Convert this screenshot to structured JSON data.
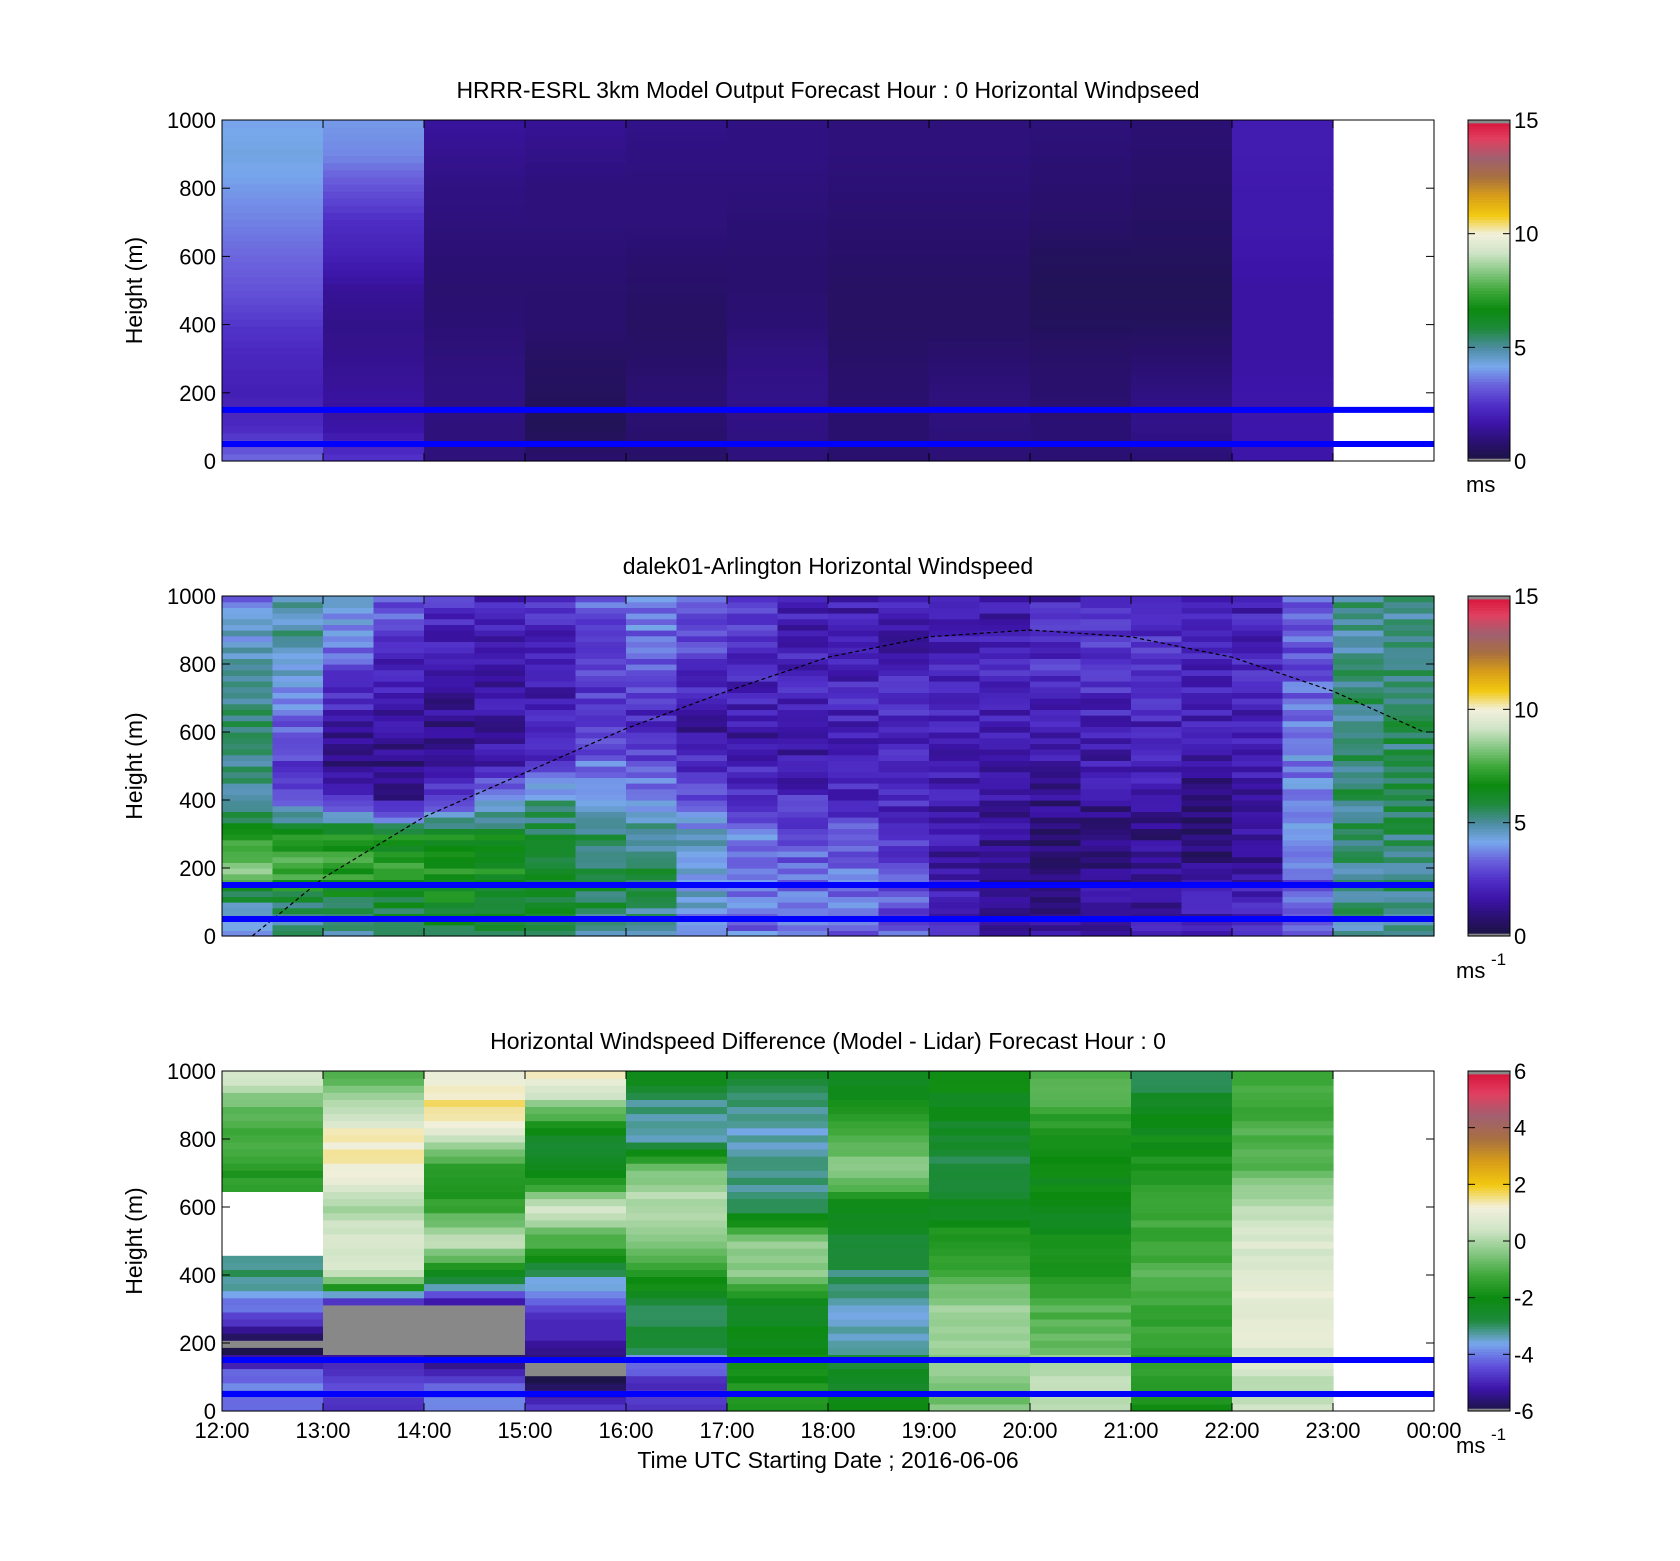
{
  "figure": {
    "background": "#ffffff",
    "wind_colormap": [
      "#1a1440",
      "#2a1070",
      "#3c14a8",
      "#5030c8",
      "#6a60dc",
      "#78a8ec",
      "#4c8ca0",
      "#1e8a3c",
      "#0c8a10",
      "#3ea83a",
      "#86c884",
      "#cfe4c6",
      "#f2f0dc",
      "#f2c810",
      "#d89e18",
      "#a87040",
      "#a06070",
      "#e04060",
      "#d81038"
    ],
    "diff_colormap": [
      "#1a1440",
      "#3c14a8",
      "#6050dc",
      "#78a8ec",
      "#1e8a3c",
      "#0c8a10",
      "#3ea83a",
      "#86c884",
      "#cfe4c6",
      "#f2f0dc",
      "#f2c810",
      "#d89e18",
      "#a87040",
      "#a06070",
      "#e04060",
      "#d81038"
    ],
    "level_line_color": "#0000ff",
    "overflow_color": "#888888"
  },
  "chart_data": [
    {
      "type": "heatmap",
      "title": "HRRR-ESRL 3km Model Output   Forecast Hour : 0 Horizontal Windpseed",
      "ylabel": "Height (m)",
      "xlabel": "",
      "xlim": [
        "12:00",
        "00:00"
      ],
      "ylim": [
        0,
        1000
      ],
      "x_tick_labels": [],
      "y_tick_labels": [
        "1000",
        "800",
        "600",
        "400",
        "200",
        "0"
      ],
      "colorbar": {
        "range": [
          0,
          15
        ],
        "tick_labels": [
          "15",
          "10",
          "5",
          "0"
        ],
        "units": "ms",
        "units_sup": ""
      },
      "reference_lines_m": [
        150,
        50
      ],
      "hours": [
        "12:00",
        "13:00",
        "14:00",
        "15:00",
        "16:00",
        "17:00",
        "18:00",
        "19:00",
        "20:00",
        "21:00",
        "22:00"
      ],
      "heights_m": [
        0,
        100,
        200,
        300,
        400,
        500,
        600,
        700,
        800,
        900,
        1000
      ],
      "values_ms": [
        [
          3.5,
          2.6,
          1.0,
          0.8,
          0.7,
          1.0,
          0.8,
          0.9,
          0.9,
          0.9,
          1.7
        ],
        [
          2.3,
          1.6,
          1.0,
          0.4,
          0.8,
          1.1,
          0.8,
          1.0,
          0.9,
          1.2,
          1.7
        ],
        [
          2.0,
          1.5,
          1.1,
          0.5,
          0.9,
          1.2,
          0.8,
          1.0,
          0.8,
          1.1,
          1.7
        ],
        [
          2.2,
          1.3,
          1.0,
          0.6,
          0.7,
          1.1,
          0.7,
          0.8,
          0.7,
          0.8,
          1.6
        ],
        [
          2.6,
          1.2,
          0.9,
          0.8,
          0.6,
          0.9,
          0.6,
          0.6,
          0.5,
          0.5,
          1.6
        ],
        [
          3.1,
          1.4,
          0.8,
          0.8,
          0.7,
          0.8,
          0.6,
          0.6,
          0.4,
          0.4,
          1.6
        ],
        [
          3.4,
          2.0,
          0.9,
          0.9,
          0.8,
          0.8,
          0.7,
          0.7,
          0.5,
          0.5,
          1.7
        ],
        [
          3.7,
          2.4,
          1.0,
          1.0,
          1.0,
          0.9,
          0.8,
          0.8,
          0.7,
          0.6,
          1.8
        ],
        [
          4.0,
          3.1,
          1.1,
          1.0,
          1.0,
          1.0,
          0.9,
          0.9,
          0.8,
          0.7,
          1.8
        ],
        [
          4.3,
          3.8,
          1.3,
          1.2,
          1.1,
          1.1,
          1.0,
          1.0,
          0.9,
          0.8,
          1.9
        ],
        [
          4.1,
          4.0,
          1.5,
          1.4,
          1.2,
          1.1,
          1.0,
          1.0,
          1.0,
          0.9,
          1.9
        ]
      ]
    },
    {
      "type": "heatmap",
      "title": "dalek01-Arlington  Horizontal Windspeed",
      "ylabel": "Height (m)",
      "xlabel": "",
      "xlim": [
        "12:00",
        "00:00"
      ],
      "ylim": [
        0,
        1000
      ],
      "x_tick_labels": [],
      "y_tick_labels": [
        "1000",
        "800",
        "600",
        "400",
        "200",
        "0"
      ],
      "colorbar": {
        "range": [
          0,
          15
        ],
        "tick_labels": [
          "15",
          "10",
          "5",
          "0"
        ],
        "units": "ms",
        "units_sup": "-1"
      },
      "reference_lines_m": [
        150,
        50
      ],
      "time_columns_h": [
        12.0,
        12.5,
        13.0,
        13.5,
        14.0,
        14.5,
        15.0,
        15.5,
        16.0,
        16.5,
        17.0,
        17.5,
        18.0,
        18.5,
        19.0,
        19.5,
        20.0,
        20.5,
        21.0,
        21.5,
        22.0,
        22.5,
        23.0,
        23.5
      ],
      "heights_m": [
        0,
        100,
        200,
        300,
        400,
        500,
        600,
        700,
        800,
        900,
        1000
      ],
      "values_ms": [
        [
          4.5,
          5.0,
          5.2,
          5.4,
          5.6,
          5.5,
          5.3,
          5.0,
          4.8,
          3.8,
          3.5,
          3.3,
          3.2,
          3.0,
          2.2,
          1.5,
          1.4,
          1.6,
          1.8,
          2.0,
          2.2,
          3.0,
          5.0,
          5.2
        ],
        [
          5.2,
          5.6,
          6.0,
          6.2,
          6.6,
          6.4,
          6.0,
          5.8,
          5.5,
          4.2,
          3.6,
          3.4,
          3.5,
          3.2,
          2.0,
          1.2,
          1.0,
          1.4,
          1.6,
          1.8,
          2.0,
          3.2,
          5.2,
          5.3
        ],
        [
          8.5,
          8.0,
          7.2,
          7.0,
          7.0,
          6.6,
          6.2,
          5.8,
          5.6,
          4.6,
          3.8,
          3.4,
          3.6,
          3.0,
          1.6,
          0.8,
          0.9,
          1.2,
          1.4,
          1.3,
          1.6,
          3.4,
          5.3,
          5.4
        ],
        [
          6.5,
          7.0,
          6.8,
          6.5,
          6.4,
          6.2,
          5.8,
          5.6,
          5.2,
          4.4,
          3.6,
          3.0,
          3.2,
          2.4,
          1.8,
          1.2,
          1.0,
          1.0,
          1.2,
          0.8,
          1.4,
          3.6,
          5.4,
          5.4
        ],
        [
          5.0,
          3.2,
          2.2,
          1.5,
          3.0,
          4.6,
          5.0,
          4.6,
          4.0,
          3.2,
          2.8,
          2.4,
          2.2,
          2.2,
          1.9,
          1.6,
          1.2,
          1.4,
          1.6,
          1.0,
          1.6,
          3.8,
          5.4,
          5.5
        ],
        [
          5.0,
          2.4,
          1.2,
          1.0,
          1.3,
          2.0,
          2.8,
          3.5,
          3.2,
          2.4,
          2.0,
          1.8,
          1.9,
          2.1,
          2.0,
          1.8,
          1.6,
          1.8,
          2.0,
          1.6,
          1.8,
          3.8,
          5.5,
          5.5
        ],
        [
          5.5,
          3.2,
          1.6,
          1.3,
          1.2,
          1.5,
          2.0,
          2.4,
          2.0,
          1.5,
          1.6,
          1.7,
          2.0,
          2.2,
          2.1,
          2.0,
          1.8,
          2.0,
          2.0,
          1.8,
          2.0,
          3.6,
          5.4,
          5.5
        ],
        [
          5.2,
          4.0,
          2.2,
          1.8,
          1.5,
          1.6,
          1.9,
          2.5,
          2.6,
          2.0,
          2.0,
          2.1,
          2.2,
          2.2,
          2.2,
          2.0,
          2.2,
          2.2,
          2.2,
          2.0,
          2.2,
          3.4,
          5.3,
          5.4
        ],
        [
          5.0,
          4.8,
          3.0,
          2.2,
          1.8,
          1.7,
          2.0,
          2.8,
          3.0,
          2.6,
          2.2,
          2.0,
          1.9,
          2.0,
          2.0,
          2.1,
          2.4,
          2.4,
          2.3,
          2.0,
          2.2,
          3.2,
          5.2,
          5.3
        ],
        [
          4.4,
          5.0,
          3.8,
          2.8,
          2.2,
          2.0,
          2.2,
          3.0,
          3.5,
          3.0,
          2.5,
          2.0,
          1.8,
          1.8,
          1.9,
          1.9,
          2.4,
          2.6,
          2.4,
          2.1,
          2.1,
          3.2,
          5.1,
          5.2
        ],
        [
          3.6,
          4.8,
          4.6,
          3.4,
          2.6,
          2.2,
          2.4,
          3.2,
          3.8,
          3.2,
          2.6,
          2.2,
          2.0,
          1.9,
          1.8,
          1.7,
          2.0,
          2.4,
          2.6,
          2.2,
          2.0,
          3.0,
          5.0,
          5.1
        ]
      ],
      "boundary_layer_height": {
        "time_h": [
          12.3,
          13.0,
          14.0,
          15.0,
          16.0,
          17.0,
          18.0,
          19.0,
          20.0,
          21.0,
          22.0,
          23.0,
          23.9
        ],
        "height_m": [
          0,
          170,
          350,
          480,
          610,
          720,
          820,
          880,
          900,
          880,
          820,
          720,
          600
        ]
      }
    },
    {
      "type": "heatmap",
      "title": "Horizontal Windspeed Difference (Model - Lidar) Forecast Hour : 0",
      "ylabel": "Height (m)",
      "xlabel": "Time UTC  Starting Date ; 2016-06-06",
      "xlim": [
        "12:00",
        "00:00"
      ],
      "ylim": [
        0,
        1000
      ],
      "x_tick_labels": [
        "12:00",
        "13:00",
        "14:00",
        "15:00",
        "16:00",
        "17:00",
        "18:00",
        "19:00",
        "20:00",
        "21:00",
        "22:00",
        "23:00",
        "00:00"
      ],
      "y_tick_labels": [
        "1000",
        "800",
        "600",
        "400",
        "200",
        "0"
      ],
      "colorbar": {
        "range": [
          -6,
          6
        ],
        "tick_labels": [
          "6",
          "4",
          "2",
          "0",
          "-2",
          "-4",
          "-6"
        ],
        "units": "ms",
        "units_sup": "-1"
      },
      "reference_lines_m": [
        150,
        50
      ],
      "hours": [
        "12:00",
        "13:00",
        "14:00",
        "15:00",
        "16:00",
        "17:00",
        "18:00",
        "19:00",
        "20:00",
        "21:00",
        "22:00"
      ],
      "heights_m": [
        0,
        100,
        200,
        300,
        400,
        500,
        600,
        700,
        800,
        900,
        1000
      ],
      "values_ms": [
        [
          -4.2,
          -4.8,
          -3.8,
          -4.6,
          -4.6,
          -1.6,
          -2.0,
          -0.6,
          0.0,
          -1.8,
          0.2
        ],
        [
          -4.0,
          -4.4,
          -4.6,
          -6.3,
          -4.8,
          -1.8,
          -2.4,
          -0.4,
          0.2,
          -1.6,
          0.4
        ],
        [
          -6.3,
          -6.3,
          -6.3,
          -5.2,
          -2.6,
          -2.2,
          -3.2,
          -0.2,
          -0.8,
          -1.4,
          0.8
        ],
        [
          -4.2,
          -6.3,
          -6.2,
          -4.6,
          -2.8,
          -2.4,
          -3.4,
          0.0,
          -1.0,
          -1.2,
          1.0
        ],
        [
          -3.0,
          0.4,
          -2.2,
          -3.2,
          -1.6,
          -0.4,
          -3.0,
          -1.2,
          -1.6,
          -1.0,
          0.8
        ],
        [
          null,
          0.8,
          0.6,
          -1.0,
          -0.2,
          -0.2,
          -2.6,
          -1.4,
          -2.0,
          -1.2,
          0.6
        ],
        [
          null,
          -0.2,
          -1.4,
          0.6,
          0.2,
          -3.0,
          -2.2,
          -2.4,
          -2.2,
          -1.4,
          0.2
        ],
        [
          -1.6,
          1.2,
          -1.8,
          -2.2,
          -0.4,
          -3.2,
          -0.4,
          -2.8,
          -2.0,
          -1.6,
          -0.8
        ],
        [
          -1.2,
          1.4,
          0.4,
          -2.8,
          -3.4,
          -3.4,
          -0.8,
          -2.6,
          -1.8,
          -2.0,
          -1.0
        ],
        [
          -0.8,
          0.2,
          1.6,
          -0.2,
          -3.2,
          -3.2,
          -2.0,
          -2.2,
          -1.2,
          -2.4,
          -1.4
        ],
        [
          0.8,
          -1.2,
          1.0,
          1.4,
          -2.0,
          -2.6,
          -2.2,
          -2.0,
          -0.8,
          -3.0,
          -1.2
        ]
      ]
    }
  ]
}
